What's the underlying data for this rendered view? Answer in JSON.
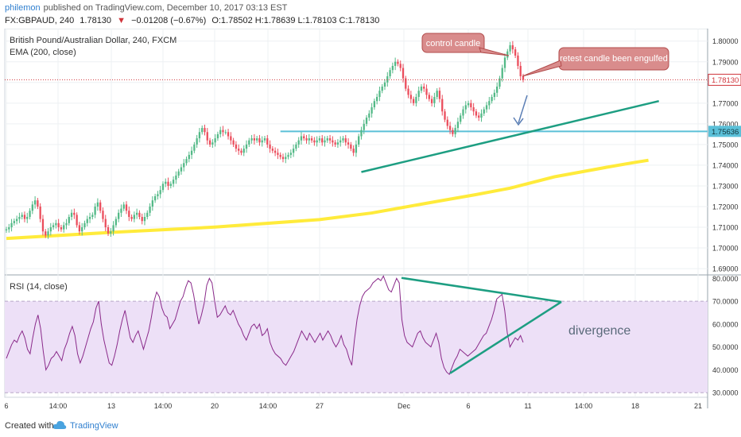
{
  "header": {
    "author": "philemon",
    "published": "published on TradingView.com, December 10, 2017 03:13 EST",
    "symbol": "FX:GBPAUD, 240",
    "last": "1.78130",
    "change_arrow": "▼",
    "change": "−0.01208 (−0.67%)",
    "ohlc": "O:1.78502 H:1.78639 L:1.78103 C:1.78130"
  },
  "main_pane": {
    "title": "British Pound/Australian Dollar, 240, FXCM",
    "indicator": "EMA (200, close)"
  },
  "rsi_pane": {
    "title": "RSI (14, close)"
  },
  "annotations": {
    "control_candle": "control candle",
    "retest": "retest candle been engulfed",
    "divergence": "divergence"
  },
  "footer": {
    "created_with": "Created with",
    "brand": "TradingView"
  },
  "colors": {
    "up": "#53b987",
    "down": "#eb4d5c",
    "ema": "#ffeb3b",
    "trendline": "#1d9e82",
    "support": "#5bc0d8",
    "callout_fill": "#d98c8c",
    "callout_border": "#b24b4b",
    "rsi": "#8a2a8a",
    "rsi_band": "#ede0f7",
    "last_price_label": "#d0343b"
  },
  "chart_data": [
    {
      "type": "candlestick",
      "title": "British Pound/Australian Dollar, 240, FXCM",
      "y_ticks": [
        "1.80000",
        "1.79000",
        "1.78000",
        "1.77000",
        "1.76000",
        "1.75000",
        "1.74000",
        "1.73000",
        "1.72000",
        "1.71000",
        "1.70000",
        "1.69000"
      ],
      "ylim": [
        1.6885,
        1.8045
      ],
      "last_price": "1.78130",
      "support_level": "1.75636",
      "ema_200": [
        [
          0,
          1.7046
        ],
        [
          40,
          1.7075
        ],
        [
          80,
          1.7101
        ],
        [
          120,
          1.7137
        ],
        [
          140,
          1.7169
        ],
        [
          160,
          1.7214
        ],
        [
          180,
          1.7258
        ],
        [
          193,
          1.7289
        ],
        [
          210,
          1.7344
        ],
        [
          230,
          1.739
        ],
        [
          240,
          1.7412
        ],
        [
          246,
          1.7424
        ]
      ],
      "trendline": [
        [
          136,
          1.7367
        ],
        [
          250,
          1.771
        ]
      ],
      "x_ticks": [
        "6",
        "14:00",
        "13",
        "14:00",
        "20",
        "14:00",
        "27",
        "Dec",
        "6",
        "11",
        "14:00",
        "18",
        "21"
      ],
      "closes": [
        1.709,
        1.71,
        1.712,
        1.713,
        1.714,
        1.715,
        1.716,
        1.714,
        1.715,
        1.718,
        1.721,
        1.723,
        1.72,
        1.714,
        1.708,
        1.706,
        1.708,
        1.71,
        1.711,
        1.712,
        1.71,
        1.709,
        1.711,
        1.712,
        1.715,
        1.717,
        1.716,
        1.711,
        1.708,
        1.71,
        1.712,
        1.714,
        1.715,
        1.716,
        1.72,
        1.722,
        1.718,
        1.714,
        1.71,
        1.707,
        1.708,
        1.711,
        1.714,
        1.717,
        1.719,
        1.721,
        1.718,
        1.715,
        1.714,
        1.716,
        1.717,
        1.715,
        1.713,
        1.715,
        1.717,
        1.72,
        1.723,
        1.725,
        1.726,
        1.728,
        1.731,
        1.732,
        1.73,
        1.731,
        1.733,
        1.735,
        1.737,
        1.739,
        1.741,
        1.743,
        1.745,
        1.747,
        1.75,
        1.753,
        1.756,
        1.758,
        1.756,
        1.752,
        1.75,
        1.751,
        1.753,
        1.755,
        1.757,
        1.756,
        1.756,
        1.754,
        1.752,
        1.75,
        1.748,
        1.747,
        1.746,
        1.748,
        1.75,
        1.752,
        1.753,
        1.752,
        1.753,
        1.751,
        1.752,
        1.753,
        1.75,
        1.748,
        1.747,
        1.746,
        1.745,
        1.744,
        1.743,
        1.744,
        1.745,
        1.746,
        1.748,
        1.75,
        1.752,
        1.754,
        1.753,
        1.752,
        1.753,
        1.752,
        1.751,
        1.752,
        1.753,
        1.751,
        1.752,
        1.753,
        1.752,
        1.751,
        1.75,
        1.751,
        1.752,
        1.753,
        1.751,
        1.75,
        1.748,
        1.746,
        1.75,
        1.754,
        1.757,
        1.76,
        1.763,
        1.765,
        1.768,
        1.771,
        1.773,
        1.776,
        1.778,
        1.78,
        1.783,
        1.786,
        1.788,
        1.79,
        1.789,
        1.787,
        1.782,
        1.777,
        1.774,
        1.772,
        1.77,
        1.773,
        1.776,
        1.778,
        1.777,
        1.774,
        1.772,
        1.77,
        1.773,
        1.776,
        1.772,
        1.766,
        1.762,
        1.759,
        1.757,
        1.755,
        1.758,
        1.761,
        1.764,
        1.767,
        1.769,
        1.77,
        1.768,
        1.766,
        1.764,
        1.763,
        1.765,
        1.767,
        1.769,
        1.771,
        1.773,
        1.775,
        1.778,
        1.782,
        1.787,
        1.792,
        1.795,
        1.798,
        1.796,
        1.793,
        1.788,
        1.783,
        1.7813
      ]
    },
    {
      "type": "line",
      "title": "RSI (14, close)",
      "y_ticks": [
        "80.0000",
        "70.0000",
        "60.0000",
        "50.0000",
        "40.0000",
        "30.0000"
      ],
      "ylim": [
        28,
        81.5
      ],
      "band": [
        30,
        70
      ],
      "values": [
        45,
        48,
        51,
        53,
        52,
        55,
        57,
        54,
        49,
        47,
        54,
        60,
        64,
        58,
        48,
        40,
        42,
        45,
        46,
        48,
        46,
        44,
        49,
        52,
        56,
        59,
        55,
        47,
        43,
        46,
        50,
        54,
        58,
        61,
        67,
        70,
        60,
        53,
        48,
        43,
        42,
        46,
        51,
        57,
        62,
        66,
        60,
        54,
        52,
        55,
        57,
        53,
        49,
        53,
        57,
        63,
        70,
        74,
        72,
        67,
        64,
        63,
        58,
        60,
        62,
        66,
        70,
        72,
        76,
        79,
        78,
        73,
        66,
        60,
        64,
        69,
        77,
        80,
        78,
        70,
        63,
        64,
        66,
        68,
        65,
        64,
        66,
        63,
        60,
        58,
        55,
        53,
        56,
        59,
        60,
        58,
        60,
        55,
        56,
        58,
        52,
        49,
        47,
        46,
        45,
        43,
        42,
        44,
        46,
        48,
        51,
        54,
        57,
        55,
        53,
        56,
        54,
        52,
        54,
        56,
        53,
        55,
        57,
        55,
        52,
        50,
        52,
        55,
        51,
        49,
        45,
        42,
        53,
        62,
        68,
        72,
        74,
        75,
        76,
        78,
        79,
        80,
        79,
        81,
        78,
        75,
        74,
        77,
        80,
        78,
        62,
        55,
        52,
        51,
        50,
        53,
        56,
        57,
        54,
        52,
        51,
        50,
        53,
        56,
        52,
        45,
        41,
        39,
        38,
        41,
        44,
        46,
        49,
        48,
        47,
        46,
        47,
        48,
        49,
        51,
        53,
        55,
        56,
        59,
        62,
        66,
        71,
        72,
        73,
        66,
        56,
        50,
        52,
        54,
        53,
        55,
        52
      ]
    }
  ]
}
